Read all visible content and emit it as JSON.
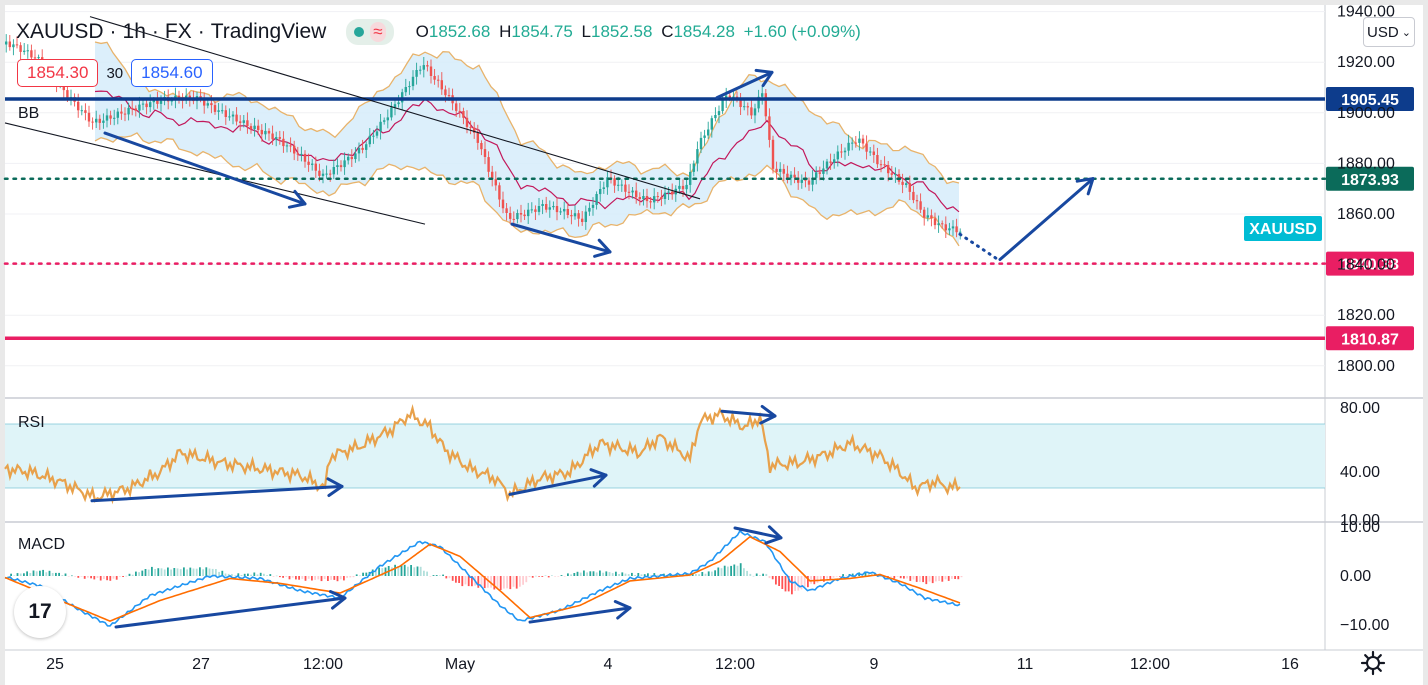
{
  "header": {
    "symbol": "XAUUSD",
    "interval": "1h",
    "exchange": "FX",
    "source": "TradingView",
    "ohlc": {
      "o_label": "O",
      "o": "1852.68",
      "h_label": "H",
      "h": "1854.75",
      "l_label": "L",
      "l": "1852.58",
      "c_label": "C",
      "c": "1854.28",
      "change": "+1.60 (+0.09%)"
    },
    "sell_price": "1854.30",
    "spread": "30",
    "buy_price": "1854.60",
    "currency": "USD"
  },
  "indicators": {
    "bb": "BB",
    "rsi": "RSI",
    "macd": "MACD"
  },
  "logo_text": "17",
  "symbol_tag": "XAUUSD",
  "colors": {
    "up": "#26a69a",
    "down": "#ef5350",
    "bb_mid": "#c2185b",
    "bb_band": "#e8b36b",
    "bb_fill": "#d6ecfa",
    "rsi_line": "#e8a14b",
    "rsi_band": "#dff4f8",
    "macd_line": "#2196f3",
    "signal_line": "#ff6d00",
    "arrow": "#1848a0",
    "resist": "#0d3c8c",
    "support": "#e91e63",
    "green_level": "#0b6b5a",
    "tag": "#00bcd4"
  },
  "chart_data": {
    "type": "candlestick",
    "price_axis": {
      "ticks": [
        1940,
        1920,
        1900,
        1880,
        1860,
        1840,
        1820,
        1800
      ],
      "labels": [
        "1940.00",
        "1920.00",
        "1900.00",
        "1880.00",
        "1860.00",
        "1840.00",
        "1820.00",
        "1800.00"
      ]
    },
    "time_axis": {
      "ticks": [
        "25",
        "27",
        "12:00",
        "May",
        "4",
        "12:00",
        "9",
        "11",
        "12:00",
        "16"
      ]
    },
    "levels": [
      {
        "price": 1905.45,
        "label": "1905.45",
        "style": "solid",
        "color": "#0d3c8c"
      },
      {
        "price": 1873.93,
        "label": "1873.93",
        "style": "dotted",
        "color": "#0b6b5a"
      },
      {
        "price": 1840.38,
        "label": "1840.38",
        "style": "dotted",
        "color": "#e91e63"
      },
      {
        "price": 1810.87,
        "label": "1810.87",
        "style": "solid",
        "color": "#e91e63"
      }
    ],
    "price_path": [
      [
        0,
        1928
      ],
      [
        40,
        1920
      ],
      [
        95,
        1898
      ],
      [
        150,
        1902
      ],
      [
        200,
        1906
      ],
      [
        235,
        1900
      ],
      [
        275,
        1890
      ],
      [
        325,
        1874
      ],
      [
        365,
        1888
      ],
      [
        400,
        1905
      ],
      [
        425,
        1918
      ],
      [
        450,
        1905
      ],
      [
        480,
        1890
      ],
      [
        510,
        1860
      ],
      [
        545,
        1863
      ],
      [
        585,
        1856
      ],
      [
        610,
        1874
      ],
      [
        650,
        1867
      ],
      [
        690,
        1871
      ],
      [
        700,
        1885
      ],
      [
        730,
        1906
      ],
      [
        755,
        1900
      ],
      [
        765,
        1910
      ],
      [
        775,
        1880
      ],
      [
        810,
        1873
      ],
      [
        840,
        1882
      ],
      [
        860,
        1888
      ],
      [
        880,
        1880
      ],
      [
        910,
        1872
      ],
      [
        925,
        1862
      ],
      [
        945,
        1856
      ],
      [
        963,
        1853
      ]
    ],
    "bb_upper": [
      [
        95,
        1930
      ],
      [
        150,
        1908
      ],
      [
        250,
        1906
      ],
      [
        330,
        1890
      ],
      [
        400,
        1916
      ],
      [
        425,
        1925
      ],
      [
        480,
        1918
      ],
      [
        520,
        1890
      ],
      [
        580,
        1875
      ],
      [
        610,
        1880
      ],
      [
        690,
        1876
      ],
      [
        740,
        1912
      ],
      [
        770,
        1914
      ],
      [
        815,
        1900
      ],
      [
        860,
        1888
      ],
      [
        910,
        1886
      ],
      [
        962,
        1870
      ]
    ],
    "bb_lower": [
      [
        95,
        1890
      ],
      [
        150,
        1890
      ],
      [
        250,
        1878
      ],
      [
        330,
        1868
      ],
      [
        400,
        1880
      ],
      [
        480,
        1870
      ],
      [
        510,
        1854
      ],
      [
        580,
        1852
      ],
      [
        640,
        1860
      ],
      [
        690,
        1862
      ],
      [
        720,
        1872
      ],
      [
        770,
        1878
      ],
      [
        815,
        1860
      ],
      [
        860,
        1860
      ],
      [
        910,
        1864
      ],
      [
        962,
        1848
      ]
    ],
    "bb_mid": [
      [
        95,
        1910
      ],
      [
        150,
        1899
      ],
      [
        250,
        1893
      ],
      [
        330,
        1880
      ],
      [
        380,
        1892
      ],
      [
        425,
        1905
      ],
      [
        480,
        1894
      ],
      [
        520,
        1872
      ],
      [
        580,
        1864
      ],
      [
        640,
        1866
      ],
      [
        690,
        1868
      ],
      [
        740,
        1890
      ],
      [
        770,
        1896
      ],
      [
        815,
        1878
      ],
      [
        860,
        1880
      ],
      [
        910,
        1874
      ],
      [
        962,
        1860
      ]
    ],
    "rsi": {
      "axis_ticks": [
        80,
        40,
        10
      ],
      "axis_labels": [
        "80.00",
        "40.00",
        "10.00"
      ],
      "band": [
        70,
        30
      ],
      "values": [
        [
          5,
          42
        ],
        [
          30,
          40
        ],
        [
          60,
          34
        ],
        [
          95,
          24
        ],
        [
          130,
          30
        ],
        [
          160,
          40
        ],
        [
          180,
          52
        ],
        [
          220,
          46
        ],
        [
          260,
          42
        ],
        [
          300,
          38
        ],
        [
          325,
          30
        ],
        [
          330,
          50
        ],
        [
          360,
          56
        ],
        [
          390,
          66
        ],
        [
          410,
          76
        ],
        [
          430,
          68
        ],
        [
          445,
          54
        ],
        [
          470,
          42
        ],
        [
          495,
          36
        ],
        [
          510,
          26
        ],
        [
          540,
          36
        ],
        [
          570,
          40
        ],
        [
          600,
          58
        ],
        [
          640,
          52
        ],
        [
          660,
          62
        ],
        [
          690,
          48
        ],
        [
          700,
          72
        ],
        [
          720,
          76
        ],
        [
          745,
          68
        ],
        [
          760,
          74
        ],
        [
          770,
          44
        ],
        [
          800,
          46
        ],
        [
          830,
          52
        ],
        [
          850,
          58
        ],
        [
          880,
          50
        ],
        [
          900,
          40
        ],
        [
          915,
          30
        ],
        [
          935,
          34
        ],
        [
          950,
          30
        ],
        [
          962,
          32
        ]
      ]
    },
    "macd": {
      "axis_ticks": [
        10,
        0,
        -10
      ],
      "axis_labels": [
        "10.00",
        "0.00",
        "−10.00"
      ],
      "macd": [
        [
          5,
          -0.2
        ],
        [
          40,
          -2
        ],
        [
          80,
          -7
        ],
        [
          110,
          -10.2
        ],
        [
          150,
          -4
        ],
        [
          210,
          0
        ],
        [
          260,
          -0.5
        ],
        [
          300,
          -3
        ],
        [
          340,
          -4.5
        ],
        [
          380,
          2
        ],
        [
          420,
          7
        ],
        [
          440,
          6
        ],
        [
          470,
          0
        ],
        [
          500,
          -6
        ],
        [
          520,
          -9.2
        ],
        [
          560,
          -7
        ],
        [
          600,
          -3
        ],
        [
          630,
          -0.5
        ],
        [
          690,
          0.5
        ],
        [
          710,
          3
        ],
        [
          740,
          9
        ],
        [
          765,
          7
        ],
        [
          790,
          -1
        ],
        [
          810,
          -3
        ],
        [
          840,
          -0.5
        ],
        [
          870,
          0.8
        ],
        [
          900,
          -1.5
        ],
        [
          925,
          -4.5
        ],
        [
          960,
          -6
        ]
      ],
      "signal": [
        [
          5,
          -0.3
        ],
        [
          60,
          -5
        ],
        [
          110,
          -9.2
        ],
        [
          160,
          -5
        ],
        [
          230,
          -0.5
        ],
        [
          280,
          -1.5
        ],
        [
          340,
          -3.5
        ],
        [
          400,
          2
        ],
        [
          430,
          6.5
        ],
        [
          460,
          4
        ],
        [
          500,
          -3
        ],
        [
          530,
          -8.5
        ],
        [
          580,
          -6
        ],
        [
          630,
          -1
        ],
        [
          690,
          0.2
        ],
        [
          720,
          3
        ],
        [
          750,
          8
        ],
        [
          780,
          5
        ],
        [
          810,
          -1
        ],
        [
          850,
          -0.5
        ],
        [
          880,
          0.3
        ],
        [
          920,
          -2.5
        ],
        [
          960,
          -5.5
        ]
      ]
    },
    "channel_lines": [
      [
        [
          5,
          1896
        ],
        [
          425,
          1856
        ]
      ],
      [
        [
          90,
          1938
        ],
        [
          700,
          1866
        ]
      ]
    ],
    "annotation_arrows": [
      {
        "pane": "price",
        "from": [
          105,
          1892
        ],
        "to": [
          305,
          1864
        ]
      },
      {
        "pane": "price",
        "from": [
          512,
          1856
        ],
        "to": [
          610,
          1845
        ]
      },
      {
        "pane": "price",
        "from": [
          717,
          1906
        ],
        "to": [
          772,
          1916
        ]
      },
      {
        "pane": "price",
        "from": [
          1000,
          1842
        ],
        "to": [
          1093,
          1874
        ]
      },
      {
        "pane": "price",
        "from": [
          960,
          1852
        ],
        "to": [
          998,
          1842
        ],
        "dotted": true
      },
      {
        "pane": "rsi",
        "from": [
          92,
          22
        ],
        "to": [
          342,
          31
        ]
      },
      {
        "pane": "rsi",
        "from": [
          510,
          26
        ],
        "to": [
          606,
          38
        ]
      },
      {
        "pane": "rsi",
        "from": [
          722,
          78
        ],
        "to": [
          775,
          75
        ]
      },
      {
        "pane": "macd",
        "from": [
          116,
          -10.4
        ],
        "to": [
          345,
          -4.5
        ]
      },
      {
        "pane": "macd",
        "from": [
          530,
          -9.4
        ],
        "to": [
          630,
          -6.5
        ]
      },
      {
        "pane": "macd",
        "from": [
          735,
          9.8
        ],
        "to": [
          781,
          7.8
        ]
      }
    ]
  }
}
